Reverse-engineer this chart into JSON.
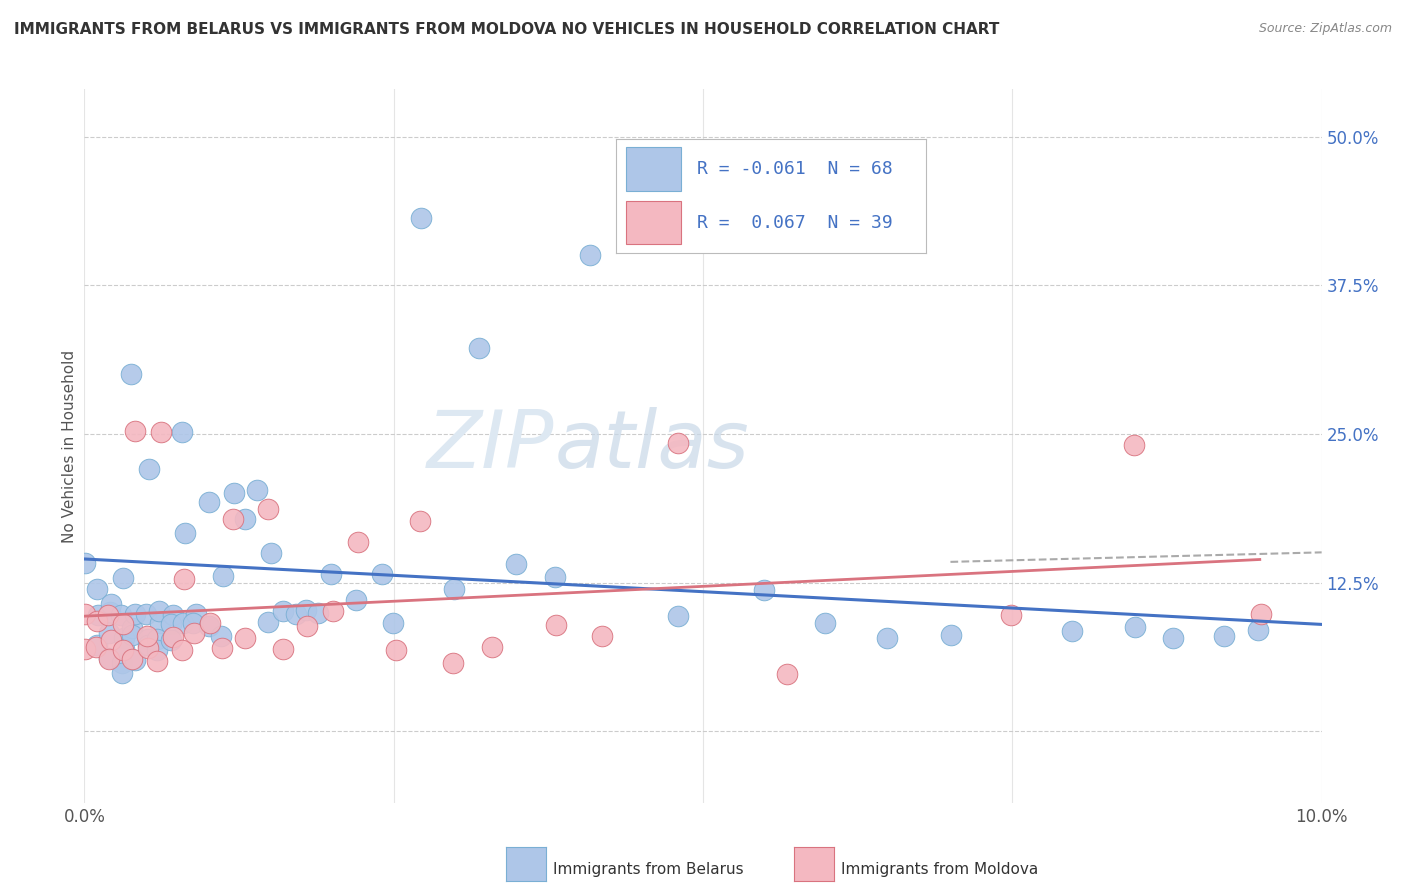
{
  "title": "IMMIGRANTS FROM BELARUS VS IMMIGRANTS FROM MOLDOVA NO VEHICLES IN HOUSEHOLD CORRELATION CHART",
  "source": "Source: ZipAtlas.com",
  "ylabel": "No Vehicles in Household",
  "xlim": [
    0.0,
    0.1
  ],
  "ylim": [
    -0.06,
    0.54
  ],
  "x_ticks": [
    0.0,
    0.1
  ],
  "x_tick_labels": [
    "0.0%",
    "10.0%"
  ],
  "y_ticks": [
    0.0,
    0.125,
    0.25,
    0.375,
    0.5
  ],
  "y_tick_labels": [
    "",
    "12.5%",
    "25.0%",
    "37.5%",
    "50.0%"
  ],
  "gridline_color": "#cccccc",
  "background_color": "#ffffff",
  "series_belarus": {
    "color": "#aec6e8",
    "edge_color": "#7aafd4",
    "belarus_line_color": "#4472c4",
    "x": [
      0.0,
      0.001,
      0.001,
      0.001,
      0.002,
      0.002,
      0.002,
      0.002,
      0.003,
      0.003,
      0.003,
      0.003,
      0.003,
      0.003,
      0.004,
      0.004,
      0.004,
      0.004,
      0.004,
      0.005,
      0.005,
      0.005,
      0.005,
      0.006,
      0.006,
      0.006,
      0.006,
      0.007,
      0.007,
      0.007,
      0.008,
      0.008,
      0.008,
      0.009,
      0.009,
      0.01,
      0.01,
      0.011,
      0.011,
      0.012,
      0.013,
      0.014,
      0.015,
      0.015,
      0.016,
      0.017,
      0.018,
      0.019,
      0.02,
      0.022,
      0.024,
      0.025,
      0.027,
      0.03,
      0.032,
      0.035,
      0.038,
      0.041,
      0.048,
      0.055,
      0.06,
      0.065,
      0.07,
      0.08,
      0.085,
      0.088,
      0.092,
      0.095
    ],
    "y": [
      0.14,
      0.1,
      0.07,
      0.12,
      0.08,
      0.1,
      0.06,
      0.11,
      0.08,
      0.1,
      0.13,
      0.06,
      0.05,
      0.07,
      0.09,
      0.08,
      0.3,
      0.1,
      0.06,
      0.08,
      0.22,
      0.07,
      0.1,
      0.09,
      0.08,
      0.1,
      0.07,
      0.1,
      0.09,
      0.08,
      0.25,
      0.17,
      0.09,
      0.1,
      0.09,
      0.19,
      0.09,
      0.08,
      0.13,
      0.2,
      0.18,
      0.2,
      0.15,
      0.09,
      0.1,
      0.1,
      0.1,
      0.1,
      0.13,
      0.11,
      0.13,
      0.09,
      0.43,
      0.12,
      0.32,
      0.14,
      0.13,
      0.4,
      0.1,
      0.12,
      0.09,
      0.08,
      0.08,
      0.085,
      0.09,
      0.08,
      0.08,
      0.085
    ]
  },
  "series_moldova": {
    "color": "#f4b8c1",
    "edge_color": "#d9737f",
    "moldova_line_color": "#d9737f",
    "x": [
      0.0,
      0.0,
      0.001,
      0.001,
      0.002,
      0.002,
      0.002,
      0.003,
      0.003,
      0.004,
      0.004,
      0.005,
      0.005,
      0.006,
      0.006,
      0.007,
      0.008,
      0.008,
      0.009,
      0.01,
      0.011,
      0.012,
      0.013,
      0.015,
      0.016,
      0.018,
      0.02,
      0.022,
      0.025,
      0.027,
      0.03,
      0.033,
      0.038,
      0.042,
      0.048,
      0.057,
      0.075,
      0.085,
      0.095
    ],
    "y": [
      0.1,
      0.07,
      0.09,
      0.07,
      0.08,
      0.1,
      0.06,
      0.09,
      0.07,
      0.25,
      0.06,
      0.07,
      0.08,
      0.25,
      0.06,
      0.08,
      0.07,
      0.13,
      0.08,
      0.09,
      0.07,
      0.18,
      0.08,
      0.19,
      0.07,
      0.09,
      0.1,
      0.16,
      0.07,
      0.18,
      0.06,
      0.07,
      0.09,
      0.08,
      0.24,
      0.045,
      0.1,
      0.24,
      0.1
    ]
  },
  "watermark_line1": "ZIP",
  "watermark_line2": "atlas",
  "watermark_color": "#dde8f2"
}
